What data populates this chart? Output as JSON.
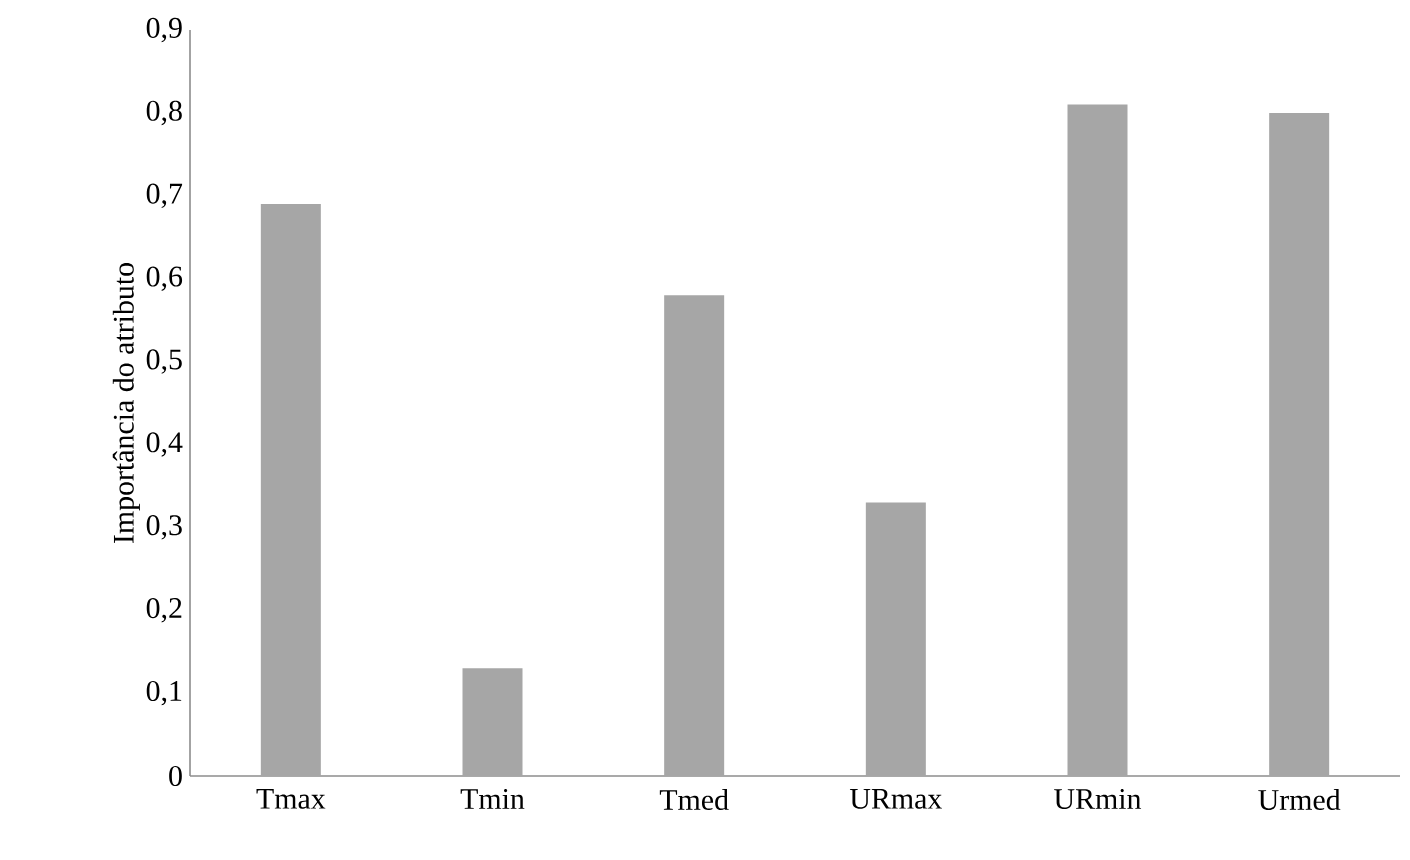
{
  "chart_data": {
    "type": "bar",
    "ylabel": "Importância do atributo",
    "categories": [
      "Tmax",
      "Tmin",
      "Tmed",
      "URmax",
      "URmin",
      "Urmed"
    ],
    "values": [
      0.69,
      0.13,
      0.58,
      0.33,
      0.81,
      0.8
    ],
    "color": "#a6a6a6",
    "ylim": [
      0,
      0.9
    ],
    "yticks": [
      0,
      {
        "value": 0.1,
        "label": "0,1"
      },
      {
        "value": 0.2,
        "label": "0,2"
      },
      {
        "value": 0.3,
        "label": "0,3"
      },
      {
        "value": 0.4,
        "label": "0,4"
      },
      {
        "value": 0.5,
        "label": "0,5"
      },
      {
        "value": 0.6,
        "label": "0,6"
      },
      {
        "value": 0.7,
        "label": "0,7"
      },
      {
        "value": 0.8,
        "label": "0,8"
      },
      {
        "value": 0.9,
        "label": "0,9"
      }
    ],
    "grid": false
  }
}
